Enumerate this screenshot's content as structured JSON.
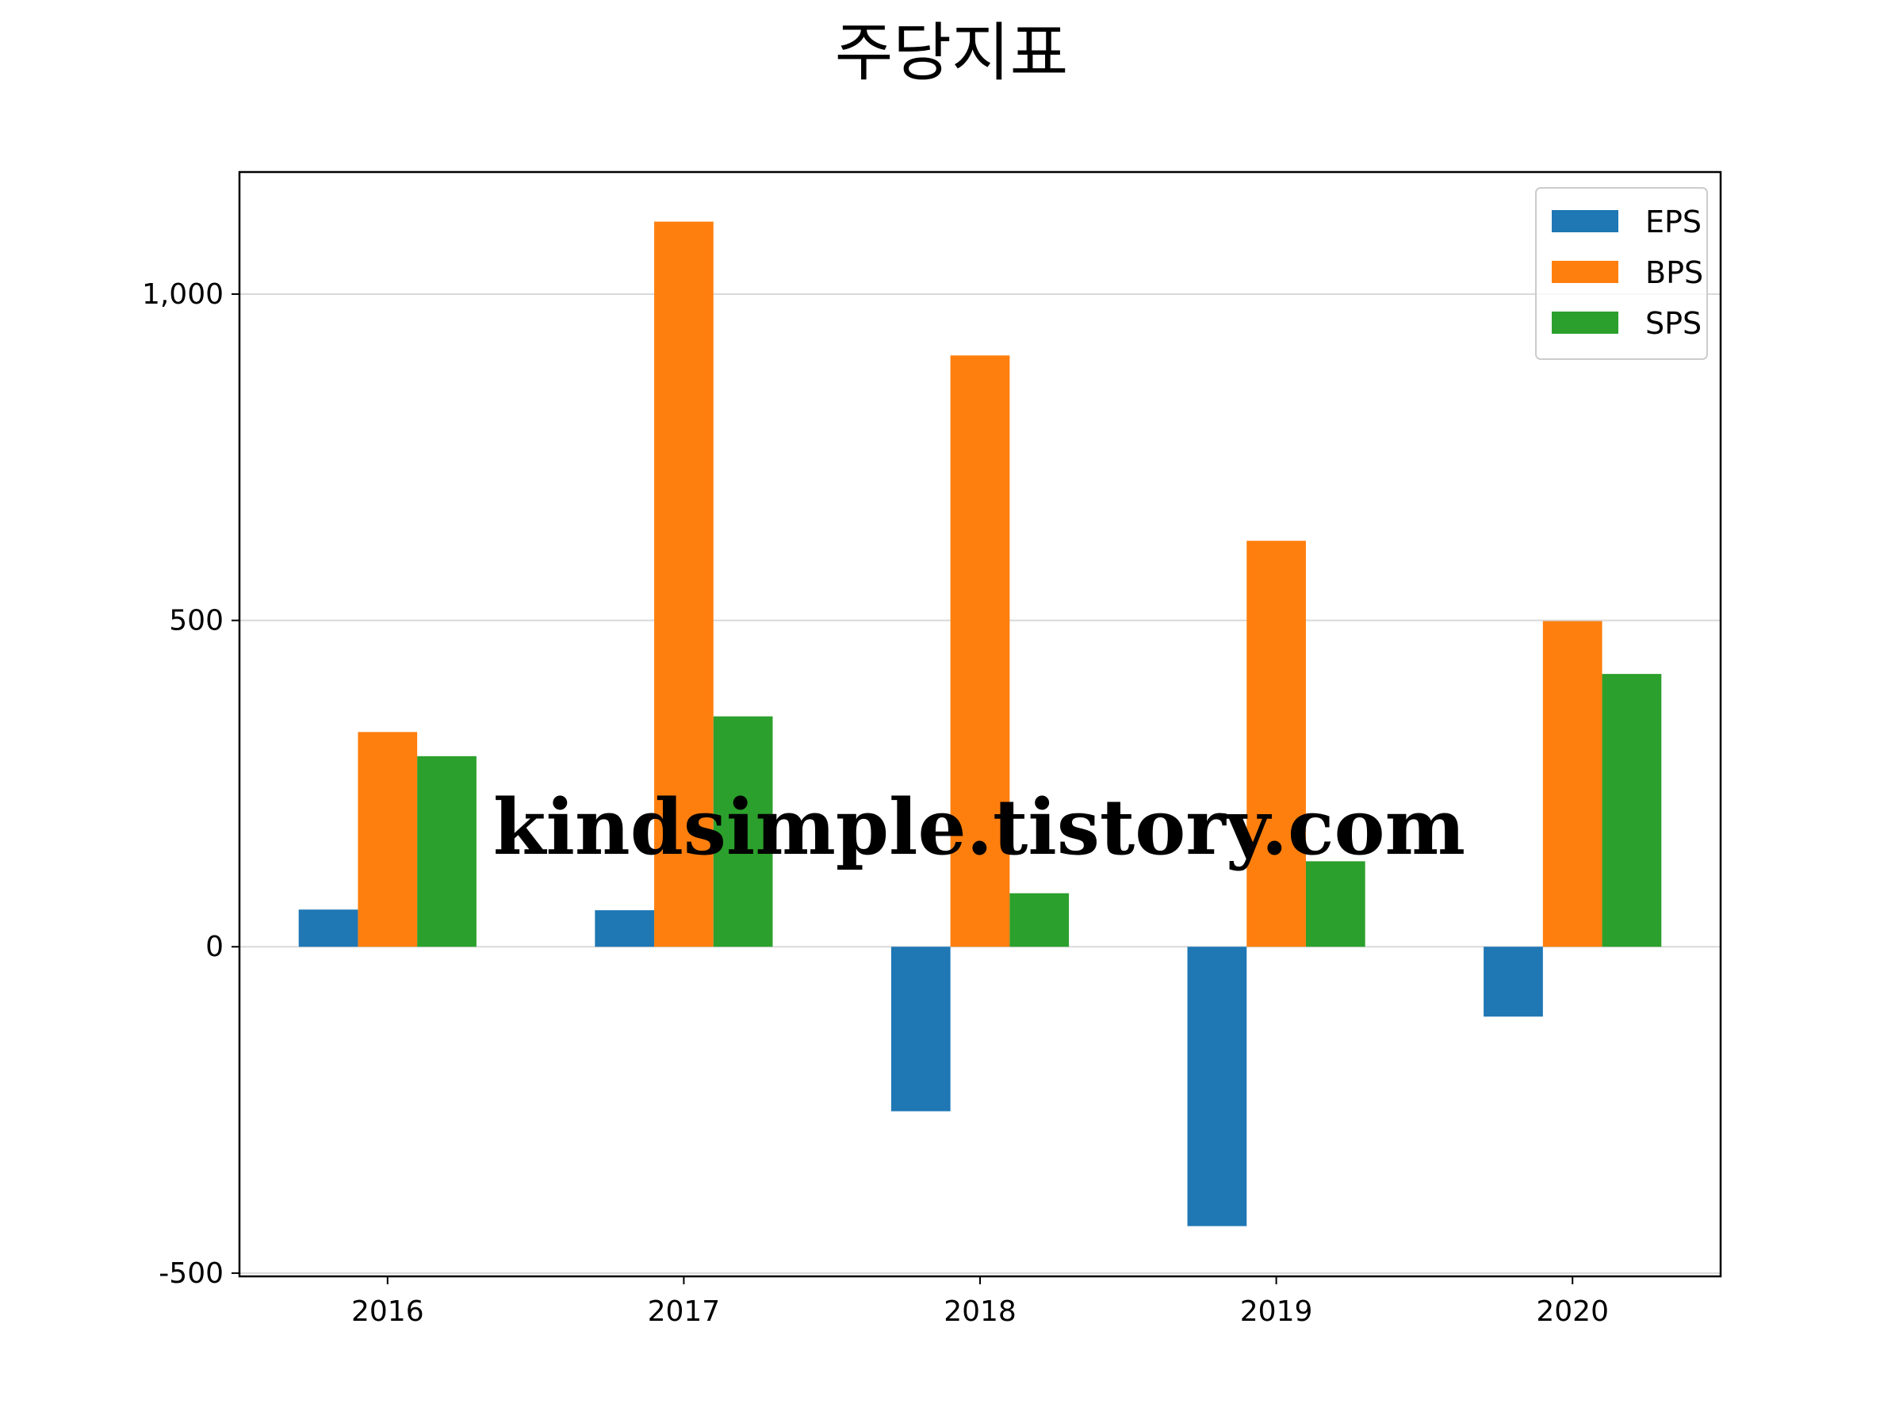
{
  "chart_data": {
    "type": "bar",
    "title": "주당지표",
    "xlabel": "",
    "ylabel": "",
    "categories": [
      "2016",
      "2017",
      "2018",
      "2019",
      "2020"
    ],
    "series": [
      {
        "name": "EPS",
        "color": "#1f77b4",
        "values": [
          57,
          56,
          -252,
          -428,
          -107
        ]
      },
      {
        "name": "BPS",
        "color": "#ff7f0e",
        "values": [
          329,
          1111,
          906,
          622,
          499
        ]
      },
      {
        "name": "SPS",
        "color": "#2ca02c",
        "values": [
          292,
          353,
          82,
          131,
          418
        ]
      }
    ],
    "ylim": [
      -505,
      1187
    ],
    "yticks": [
      -500,
      0,
      500,
      1000
    ],
    "ytick_labels": [
      "-500",
      "0",
      "500",
      "1,000"
    ],
    "grid": "y",
    "legend": "top-right",
    "watermark": "kindsimple.tistory.com",
    "watermark_color": "#e0a0e8"
  }
}
